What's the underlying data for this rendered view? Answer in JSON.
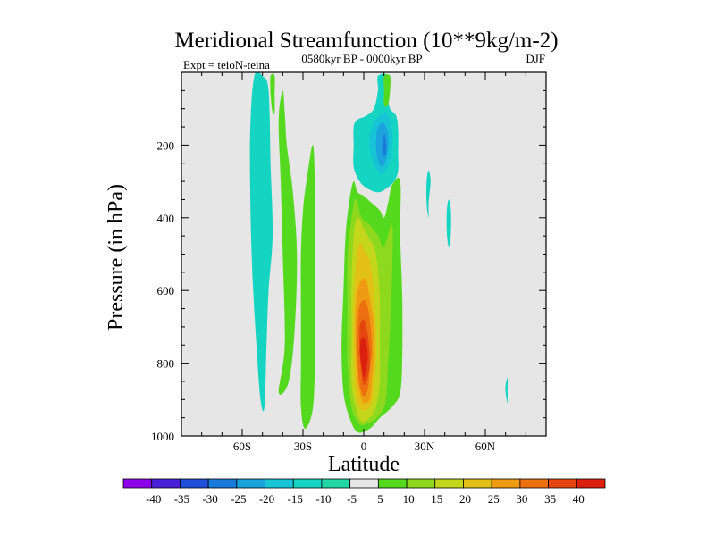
{
  "chart_data": {
    "type": "filled-contour",
    "title": "Meridional Streamfunction (10**9kg/m-2)",
    "subtitle": "0580kyr BP - 0000kyr BP",
    "left_label": "Expt = teioN-teina",
    "right_label": "DJF",
    "xlabel": "Latitude",
    "ylabel": "Pressure (in hPa)",
    "xlim": [
      -90,
      90
    ],
    "ylim": [
      1000,
      0
    ],
    "x_ticks": [
      {
        "value": -60,
        "label": "60S"
      },
      {
        "value": -30,
        "label": "30S"
      },
      {
        "value": 0,
        "label": "0"
      },
      {
        "value": 30,
        "label": "30N"
      },
      {
        "value": 60,
        "label": "60N"
      }
    ],
    "y_ticks": [
      {
        "value": 200,
        "label": "200"
      },
      {
        "value": 400,
        "label": "400"
      },
      {
        "value": 600,
        "label": "600"
      },
      {
        "value": 800,
        "label": "800"
      },
      {
        "value": 1000,
        "label": "1000"
      }
    ],
    "background_color": "#e6e6e6",
    "colorbar": {
      "labels": [
        "-40",
        "-35",
        "-30",
        "-25",
        "-20",
        "-15",
        "-10",
        "-5",
        "5",
        "10",
        "15",
        "20",
        "25",
        "30",
        "35",
        "40"
      ],
      "colors": [
        "#8b00e8",
        "#4a1fd8",
        "#1f4fd8",
        "#1a7ad9",
        "#1aa3dc",
        "#16c4d6",
        "#15d4c2",
        "#22d7a6",
        "#e6e6e6",
        "#55d91f",
        "#8ed81d",
        "#c3d61c",
        "#e3c016",
        "#ee9a12",
        "#ec6f10",
        "#e5450f",
        "#dc2010"
      ]
    },
    "regions": [
      {
        "level": -10,
        "points": [
          [
            -50,
            1
          ],
          [
            -47,
            5
          ],
          [
            -46,
            25
          ],
          [
            -45,
            45
          ],
          [
            -47,
            60
          ],
          [
            -48,
            75
          ],
          [
            -49,
            92
          ],
          [
            -51,
            90
          ],
          [
            -53,
            75
          ],
          [
            -55,
            55
          ],
          [
            -56,
            35
          ],
          [
            -56,
            15
          ],
          [
            -54,
            1
          ]
        ]
      },
      {
        "level": 5,
        "points": [
          [
            -42,
            88
          ],
          [
            -37,
            85
          ],
          [
            -34,
            70
          ],
          [
            -33,
            50
          ],
          [
            -35,
            33
          ],
          [
            -38,
            20
          ],
          [
            -39,
            11
          ],
          [
            -40,
            5
          ],
          [
            -42,
            13
          ],
          [
            -41,
            30
          ],
          [
            -40,
            50
          ],
          [
            -39,
            75
          ]
        ]
      },
      {
        "level": 5,
        "points": [
          [
            -29,
            98
          ],
          [
            -25,
            92
          ],
          [
            -24,
            75
          ],
          [
            -24,
            55
          ],
          [
            -24,
            35
          ],
          [
            -25,
            20
          ],
          [
            -28,
            29
          ],
          [
            -30,
            38
          ],
          [
            -31,
            50
          ],
          [
            -31,
            65
          ],
          [
            -31,
            80
          ],
          [
            -31,
            92
          ]
        ]
      },
      {
        "level": 5,
        "points": [
          [
            -3,
            99
          ],
          [
            3,
            98
          ],
          [
            8,
            95
          ],
          [
            14,
            92
          ],
          [
            18,
            88
          ],
          [
            19,
            78
          ],
          [
            19,
            62
          ],
          [
            18,
            45
          ],
          [
            18,
            30
          ],
          [
            14,
            31
          ],
          [
            12,
            36
          ],
          [
            10,
            40
          ],
          [
            8,
            38
          ],
          [
            4,
            36
          ],
          [
            0,
            34
          ],
          [
            -3,
            33
          ],
          [
            -5,
            30
          ],
          [
            -7,
            35
          ],
          [
            -9,
            45
          ],
          [
            -10,
            60
          ],
          [
            -11,
            75
          ],
          [
            -10,
            88
          ],
          [
            -7,
            95
          ]
        ]
      },
      {
        "level": 10,
        "points": [
          [
            -1,
            97
          ],
          [
            4,
            96
          ],
          [
            8,
            94
          ],
          [
            11,
            90
          ],
          [
            12,
            80
          ],
          [
            13,
            70
          ],
          [
            14,
            55
          ],
          [
            14,
            42
          ],
          [
            10,
            48
          ],
          [
            7,
            45
          ],
          [
            3,
            42
          ],
          [
            -1,
            40
          ],
          [
            -4,
            35
          ],
          [
            -6,
            40
          ],
          [
            -8,
            50
          ],
          [
            -8,
            65
          ],
          [
            -8,
            80
          ],
          [
            -6,
            92
          ],
          [
            -3,
            96
          ]
        ]
      },
      {
        "level": 15,
        "points": [
          [
            -1,
            96
          ],
          [
            3,
            95
          ],
          [
            6,
            92
          ],
          [
            8,
            85
          ],
          [
            8,
            75
          ],
          [
            8,
            62
          ],
          [
            6,
            50
          ],
          [
            3,
            46
          ],
          [
            0,
            43
          ],
          [
            -3,
            40
          ],
          [
            -5,
            45
          ],
          [
            -6,
            58
          ],
          [
            -6,
            72
          ],
          [
            -6,
            85
          ],
          [
            -4,
            92
          ]
        ]
      },
      {
        "level": 20,
        "points": [
          [
            0,
            93
          ],
          [
            3,
            92
          ],
          [
            5,
            88
          ],
          [
            6,
            80
          ],
          [
            6,
            70
          ],
          [
            5,
            60
          ],
          [
            3,
            52
          ],
          [
            1,
            50
          ],
          [
            -2,
            47
          ],
          [
            -4,
            54
          ],
          [
            -5,
            64
          ],
          [
            -5,
            78
          ],
          [
            -4,
            88
          ],
          [
            -2,
            92
          ]
        ]
      },
      {
        "level": 25,
        "points": [
          [
            0,
            91
          ],
          [
            3,
            90
          ],
          [
            4,
            85
          ],
          [
            5,
            78
          ],
          [
            5,
            70
          ],
          [
            3,
            62
          ],
          [
            1,
            57
          ],
          [
            -2,
            58
          ],
          [
            -4,
            65
          ],
          [
            -4,
            76
          ],
          [
            -3,
            85
          ],
          [
            -1,
            90
          ]
        ]
      },
      {
        "level": 30,
        "points": [
          [
            0,
            89
          ],
          [
            2,
            87
          ],
          [
            3,
            82
          ],
          [
            4,
            76
          ],
          [
            3,
            68
          ],
          [
            1,
            63
          ],
          [
            -2,
            64
          ],
          [
            -3,
            70
          ],
          [
            -3,
            79
          ],
          [
            -2,
            86
          ]
        ]
      },
      {
        "level": 35,
        "points": [
          [
            0,
            86
          ],
          [
            2,
            84
          ],
          [
            3,
            79
          ],
          [
            2,
            72
          ],
          [
            0,
            68
          ],
          [
            -2,
            70
          ],
          [
            -2,
            77
          ],
          [
            -1,
            83
          ]
        ]
      },
      {
        "level": 40,
        "points": [
          [
            0,
            84
          ],
          [
            1,
            82
          ],
          [
            2,
            78
          ],
          [
            1,
            74
          ],
          [
            -1,
            73
          ],
          [
            -2,
            77
          ],
          [
            -1,
            81
          ]
        ]
      },
      {
        "level": 5,
        "points": [
          [
            -46,
            1
          ],
          [
            -44,
            1
          ],
          [
            -44,
            6
          ],
          [
            -44,
            11
          ],
          [
            -45,
            11
          ],
          [
            -46,
            6
          ]
        ]
      },
      {
        "level": -10,
        "points": [
          [
            7,
            1
          ],
          [
            12,
            1
          ],
          [
            12,
            7
          ],
          [
            13,
            10
          ],
          [
            16,
            12
          ],
          [
            17,
            16
          ],
          [
            17,
            22
          ],
          [
            17,
            27
          ],
          [
            15,
            30
          ],
          [
            11,
            32
          ],
          [
            7,
            33
          ],
          [
            2,
            32
          ],
          [
            -2,
            30
          ],
          [
            -5,
            26
          ],
          [
            -5,
            20
          ],
          [
            -5,
            15
          ],
          [
            -3,
            13
          ],
          [
            1,
            12
          ],
          [
            5,
            10
          ],
          [
            7,
            5
          ]
        ]
      },
      {
        "level": -15,
        "points": [
          [
            6,
            13
          ],
          [
            10,
            11
          ],
          [
            13,
            13
          ],
          [
            14,
            16
          ],
          [
            14,
            20
          ],
          [
            13,
            24
          ],
          [
            11,
            27
          ],
          [
            8,
            28
          ],
          [
            5,
            25
          ],
          [
            3,
            21
          ],
          [
            3,
            17
          ]
        ]
      },
      {
        "level": -20,
        "points": [
          [
            7,
            15
          ],
          [
            10,
            14
          ],
          [
            12,
            17
          ],
          [
            12,
            21
          ],
          [
            11,
            24
          ],
          [
            9,
            26
          ],
          [
            7,
            24
          ],
          [
            6,
            20
          ]
        ]
      },
      {
        "level": -25,
        "points": [
          [
            10,
            17
          ],
          [
            11,
            19
          ],
          [
            11,
            22
          ],
          [
            10,
            23
          ],
          [
            9,
            21
          ]
        ]
      },
      {
        "level": 5,
        "points": [
          [
            10,
            1
          ],
          [
            13,
            1
          ],
          [
            13,
            5
          ],
          [
            12,
            9
          ],
          [
            10,
            9
          ],
          [
            10,
            5
          ]
        ]
      },
      {
        "level": -10,
        "points": [
          [
            32,
            27
          ],
          [
            33,
            30
          ],
          [
            32,
            36
          ],
          [
            32,
            40
          ],
          [
            31,
            36
          ],
          [
            31,
            30
          ]
        ]
      },
      {
        "level": -10,
        "points": [
          [
            42,
            35
          ],
          [
            43,
            38
          ],
          [
            43,
            44
          ],
          [
            42,
            48
          ],
          [
            41,
            44
          ],
          [
            41,
            38
          ]
        ]
      },
      {
        "level": -10,
        "points": [
          [
            71,
            84
          ],
          [
            71,
            88
          ],
          [
            71,
            91
          ],
          [
            70,
            88
          ],
          [
            70,
            86
          ]
        ]
      }
    ]
  }
}
